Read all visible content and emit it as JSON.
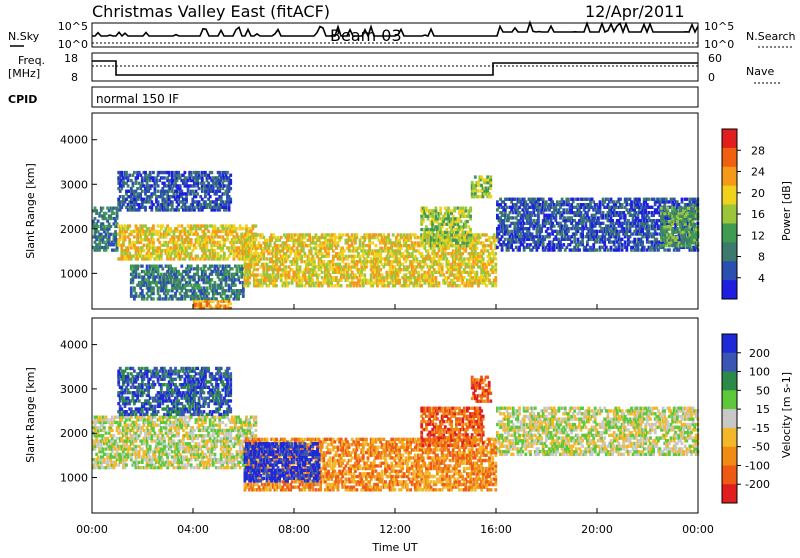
{
  "header": {
    "station": "Christmas Valley East (fitACF)",
    "beam": "Beam 03",
    "date": "12/Apr/2011"
  },
  "noise_panel": {
    "left_label": "N.Sky",
    "right_label": "N.Search",
    "ytick_top": "10^5",
    "ytick_bottom": "10^0",
    "rtick_top": "10^5",
    "rtick_bottom": "10^0"
  },
  "freq_panel": {
    "left_label": "Freq.",
    "left_unit": "[MHz]",
    "right_label": "Nave",
    "ytick_top": "18",
    "ytick_bottom": "8",
    "rtick_top": "60",
    "rtick_bottom": "0"
  },
  "cpid_panel": {
    "label": "CPID",
    "value": "normal 150 IF"
  },
  "colors": {
    "power": [
      "#1e1ee0",
      "#2a4fb0",
      "#3c7a6e",
      "#3f9a52",
      "#9cc63a",
      "#f0d21c",
      "#f59a18",
      "#f06010",
      "#e01e1e"
    ],
    "velocity": [
      "#1e2ad8",
      "#3b55b5",
      "#2c8a48",
      "#5cc83a",
      "#c8c8c8",
      "#f2b82a",
      "#f08c14",
      "#ee5a14",
      "#e01e1e"
    ]
  },
  "chart_data": [
    {
      "type": "heatmap",
      "panel": "power",
      "ylabel": "Slant Range [km]",
      "ylim": [
        200,
        4600
      ],
      "yticks": [
        1000,
        2000,
        3000,
        4000
      ],
      "xlim": [
        0,
        24
      ],
      "colorbar": {
        "label": "Power [dB]",
        "ticks": [
          4,
          8,
          12,
          16,
          20,
          24,
          28
        ],
        "range": [
          0,
          32
        ]
      },
      "echo_regions": [
        {
          "t0": 0.0,
          "t1": 1.0,
          "r0": 1500,
          "r1": 2500,
          "level": 12
        },
        {
          "t0": 1.0,
          "t1": 6.5,
          "r0": 1300,
          "r1": 2100,
          "level": 22
        },
        {
          "t0": 1.0,
          "t1": 5.5,
          "r0": 2400,
          "r1": 3300,
          "level": 8
        },
        {
          "t0": 1.5,
          "t1": 6.0,
          "r0": 400,
          "r1": 1200,
          "level": 10
        },
        {
          "t0": 4.0,
          "t1": 5.5,
          "r0": 200,
          "r1": 400,
          "level": 28
        },
        {
          "t0": 6.0,
          "t1": 16.0,
          "r0": 700,
          "r1": 1900,
          "level": 22
        },
        {
          "t0": 13.0,
          "t1": 15.0,
          "r0": 1600,
          "r1": 2500,
          "level": 18
        },
        {
          "t0": 15.0,
          "t1": 15.8,
          "r0": 2700,
          "r1": 3200,
          "level": 18
        },
        {
          "t0": 16.0,
          "t1": 24.0,
          "r0": 1500,
          "r1": 2700,
          "level": 8
        },
        {
          "t0": 22.5,
          "t1": 24.0,
          "r0": 1600,
          "r1": 2500,
          "level": 16
        }
      ]
    },
    {
      "type": "heatmap",
      "panel": "velocity",
      "ylabel": "Slant Range [km]",
      "xlabel": "Time UT",
      "ylim": [
        200,
        4600
      ],
      "yticks": [
        1000,
        2000,
        3000,
        4000
      ],
      "xlim": [
        0,
        24
      ],
      "xticks": [
        "00:00",
        "04:00",
        "08:00",
        "12:00",
        "16:00",
        "20:00",
        "00:00"
      ],
      "colorbar": {
        "label": "Velocity [m s-1]",
        "ticks": [
          200,
          100,
          50,
          15,
          -15,
          -50,
          -100,
          -200
        ]
      },
      "echo_regions": [
        {
          "t0": 0.0,
          "t1": 6.5,
          "r0": 1200,
          "r1": 2400,
          "level": 0
        },
        {
          "t0": 1.0,
          "t1": 5.5,
          "r0": 2400,
          "r1": 3500,
          "level": 100
        },
        {
          "t0": 6.0,
          "t1": 16.0,
          "r0": 700,
          "r1": 1900,
          "level": -80
        },
        {
          "t0": 6.0,
          "t1": 9.0,
          "r0": 900,
          "r1": 1800,
          "level": 200
        },
        {
          "t0": 13.0,
          "t1": 15.5,
          "r0": 1700,
          "r1": 2600,
          "level": -200
        },
        {
          "t0": 15.0,
          "t1": 15.8,
          "r0": 2700,
          "r1": 3300,
          "level": -200
        },
        {
          "t0": 16.0,
          "t1": 24.0,
          "r0": 1500,
          "r1": 2600,
          "level": 0
        }
      ]
    }
  ]
}
